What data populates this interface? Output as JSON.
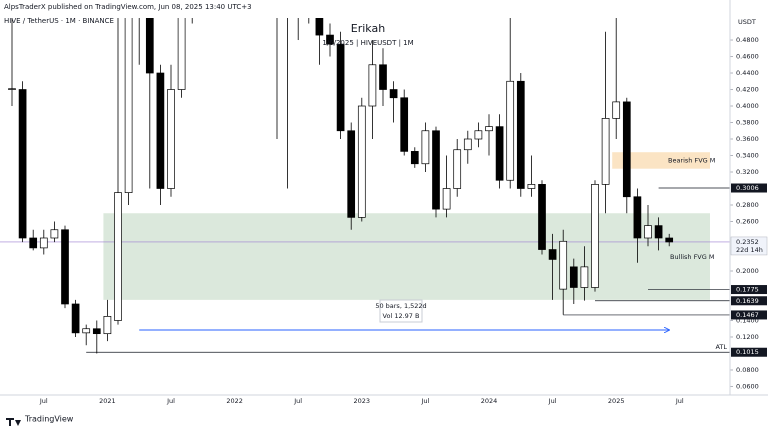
{
  "header": {
    "published": "AlpsTraderX published on TradingView.com, Jun 08, 2025 13:40 UTC+3",
    "symbol": "HIVE / TetherUS · 1M · BINANCE"
  },
  "chart_data": {
    "type": "candlestick",
    "title": "Erikah",
    "subtitle": "1/6/2025 | HIVEUSDT | 1M",
    "y_axis_label": "USDT",
    "categories": [
      null,
      null,
      null,
      "Jul",
      null,
      null,
      null,
      null,
      null,
      "2021",
      null,
      null,
      null,
      null,
      null,
      "Jul",
      null,
      null,
      null,
      null,
      null,
      "2022",
      null,
      null,
      null,
      null,
      null,
      "Jul",
      null,
      null,
      null,
      null,
      null,
      "2023",
      null,
      null,
      null,
      null,
      null,
      "Jul",
      null,
      null,
      null,
      null,
      null,
      "2024",
      null,
      null,
      null,
      null,
      null,
      "Jul",
      null,
      null,
      null,
      null,
      null,
      "2025",
      null,
      null,
      null,
      null,
      null,
      "Jul"
    ],
    "open": [
      0.42,
      0.42,
      0.24,
      0.228,
      0.24,
      0.25,
      0.16,
      0.125,
      0.13,
      0.124,
      0.14,
      0.295,
      0.55,
      0.62,
      0.44,
      0.3,
      0.42,
      0.65,
      0.7,
      0.8,
      2.0,
      1.6,
      1.2,
      1.3,
      1.2,
      0.85,
      0.6,
      0.52,
      0.58,
      0.56,
      0.486,
      0.475,
      0.37,
      0.265,
      0.4,
      0.45,
      0.42,
      0.41,
      0.345,
      0.33,
      0.37,
      0.275,
      0.3,
      0.347,
      0.36,
      0.37,
      0.375,
      0.31,
      0.43,
      0.3,
      0.305,
      0.226,
      0.178,
      0.205,
      0.18,
      0.18,
      0.305,
      0.385,
      0.405,
      0.29,
      0.24,
      0.255,
      0.24,
      null
    ],
    "high": [
      0.51,
      0.43,
      0.25,
      0.25,
      0.26,
      0.255,
      0.165,
      0.135,
      0.14,
      0.165,
      0.55,
      0.6,
      0.8,
      0.7,
      0.45,
      0.45,
      0.7,
      0.9,
      1.0,
      3.4,
      2.3,
      1.9,
      1.6,
      1.8,
      1.4,
      0.9,
      0.65,
      0.62,
      0.62,
      0.6,
      0.5,
      0.49,
      0.38,
      0.41,
      0.48,
      0.47,
      0.43,
      0.42,
      0.35,
      0.38,
      0.375,
      0.34,
      0.36,
      0.37,
      0.38,
      0.39,
      0.39,
      0.52,
      0.44,
      0.34,
      0.31,
      0.245,
      0.25,
      0.215,
      0.23,
      0.31,
      0.49,
      0.53,
      0.41,
      0.3,
      0.28,
      0.265,
      0.245,
      null
    ],
    "low": [
      0.4,
      0.235,
      0.225,
      0.22,
      0.235,
      0.155,
      0.12,
      0.11,
      0.1,
      0.115,
      0.135,
      0.28,
      0.45,
      0.3,
      0.28,
      0.29,
      0.41,
      0.5,
      0.6,
      0.8,
      1.3,
      1.0,
      0.9,
      1.1,
      0.8,
      0.36,
      0.3,
      0.48,
      0.5,
      0.45,
      0.46,
      0.36,
      0.25,
      0.26,
      0.36,
      0.4,
      0.38,
      0.34,
      0.325,
      0.32,
      0.265,
      0.265,
      0.29,
      0.33,
      0.35,
      0.34,
      0.3,
      0.3,
      0.29,
      0.29,
      0.22,
      0.165,
      0.147,
      0.16,
      0.164,
      0.175,
      0.27,
      0.36,
      0.27,
      0.21,
      0.23,
      0.225,
      0.23,
      null
    ],
    "close": [
      0.421,
      0.24,
      0.228,
      0.24,
      0.25,
      0.16,
      0.125,
      0.13,
      0.124,
      0.145,
      0.295,
      0.55,
      0.62,
      0.44,
      0.3,
      0.42,
      0.65,
      0.7,
      0.8,
      2.0,
      1.6,
      1.2,
      1.3,
      1.2,
      0.85,
      0.6,
      0.52,
      0.58,
      0.52,
      0.486,
      0.475,
      0.37,
      0.265,
      0.4,
      0.45,
      0.42,
      0.41,
      0.345,
      0.33,
      0.37,
      0.275,
      0.3,
      0.347,
      0.36,
      0.37,
      0.375,
      0.31,
      0.43,
      0.3,
      0.305,
      0.226,
      0.214,
      0.236,
      0.18,
      0.205,
      0.305,
      0.385,
      0.405,
      0.29,
      0.24,
      0.255,
      0.24,
      0.2352,
      null
    ],
    "up_color": "#ffffff",
    "down_color": "#000000",
    "ylim": [
      0.0533,
      0.5067
    ],
    "yticks": [
      {
        "value": 0.48,
        "label": "0.4800"
      },
      {
        "value": 0.46,
        "label": "0.4600"
      },
      {
        "value": 0.44,
        "label": "0.4400"
      },
      {
        "value": 0.42,
        "label": "0.4200"
      },
      {
        "value": 0.4,
        "label": "0.4000"
      },
      {
        "value": 0.38,
        "label": "0.3800"
      },
      {
        "value": 0.36,
        "label": "0.3600"
      },
      {
        "value": 0.34,
        "label": "0.3400"
      },
      {
        "value": 0.32,
        "label": "0.3200"
      },
      {
        "value": 0.28,
        "label": "0.2800"
      },
      {
        "value": 0.26,
        "label": "0.2600"
      },
      {
        "value": 0.2,
        "label": "0.2000"
      },
      {
        "value": 0.14,
        "label": "0.1400"
      },
      {
        "value": 0.12,
        "label": "0.1200"
      },
      {
        "value": 0.08,
        "label": "0.0800"
      },
      {
        "value": 0.06,
        "label": "0.0600"
      }
    ],
    "current_price": {
      "value": 0.2352,
      "label": "0.2352",
      "countdown": "22d 14h",
      "color": "#9c7fd0"
    },
    "levels": [
      {
        "value": 0.3006,
        "label": "0.3006"
      },
      {
        "value": 0.1775,
        "label": "0.1775"
      },
      {
        "value": 0.1639,
        "label": "0.1639"
      },
      {
        "value": 0.1467,
        "label": "0.1467"
      },
      {
        "value": 0.1015,
        "label": "0.1015",
        "note": "ATL"
      }
    ],
    "zones": [
      {
        "label": "Bearish FVG M",
        "range": [
          0.324,
          0.344
        ],
        "color": "#fbe4c4"
      },
      {
        "label": "Bullish FVG M",
        "range": [
          0.165,
          0.27
        ],
        "color": "#dbe8dc"
      }
    ],
    "measure": {
      "bars": "50 bars, 1,522d",
      "volume": "Vol 12.97 B",
      "color": "#2962ff"
    }
  },
  "footer": {
    "brand": "TradingView"
  }
}
